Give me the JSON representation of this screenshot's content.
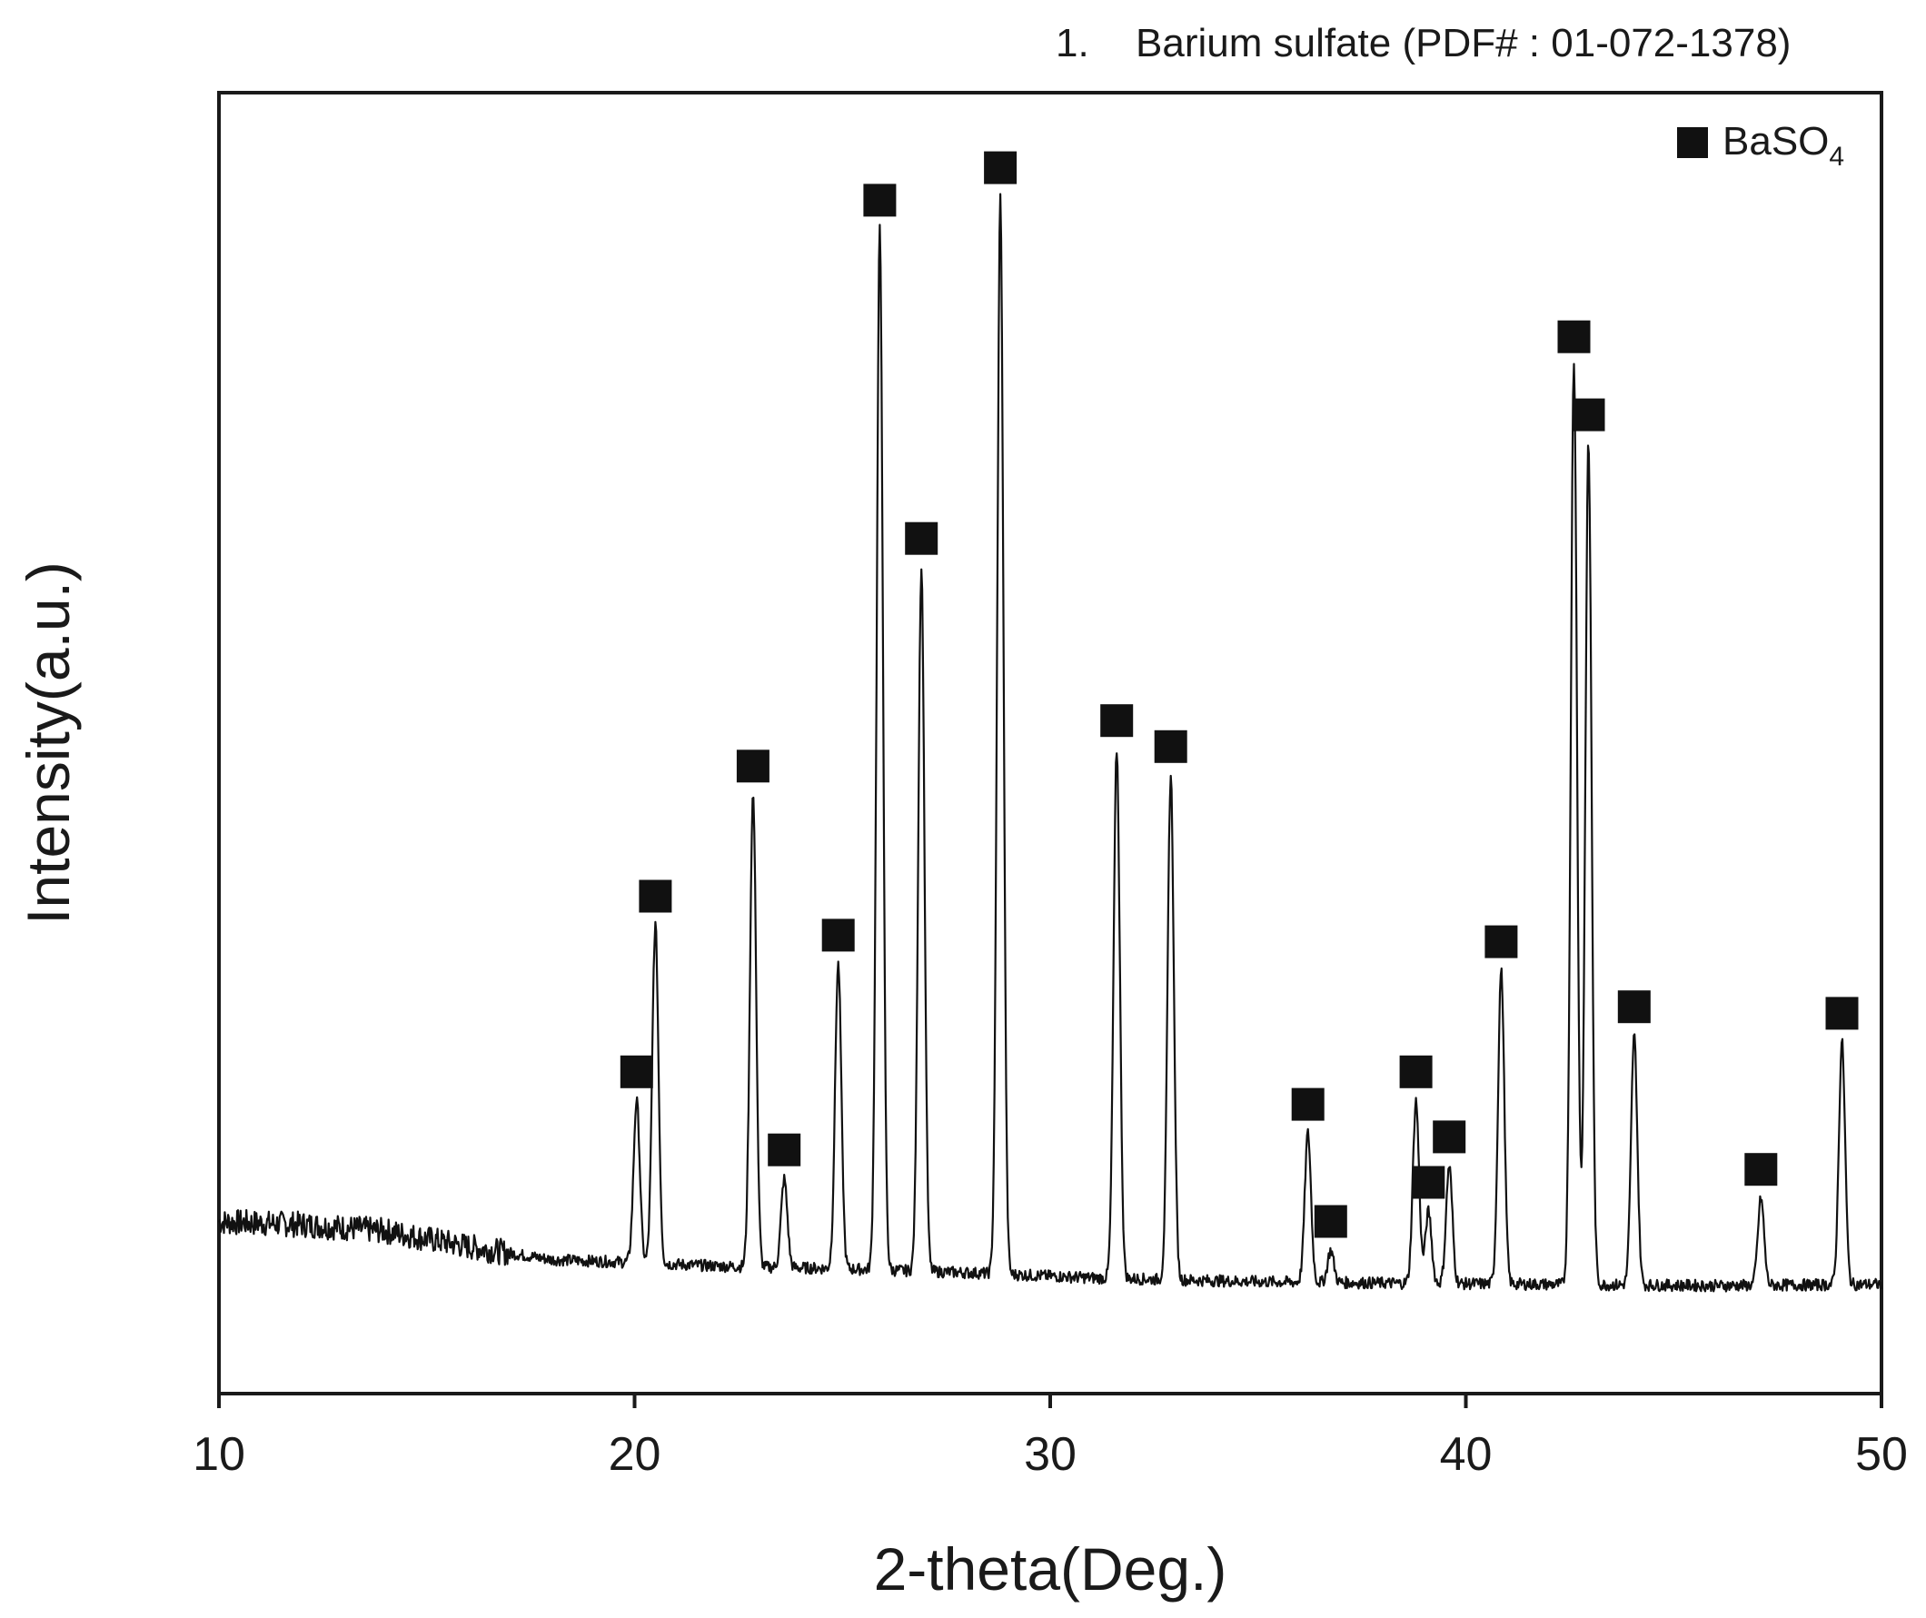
{
  "header": {
    "caption_number": "1.",
    "caption_text": "Barium sulfate (PDF# : 01-072-1378)"
  },
  "chart_data": {
    "type": "line",
    "title": "",
    "xlabel": "2-theta(Deg.)",
    "ylabel": "Intensity(a.u.)",
    "xlim": [
      10,
      50
    ],
    "ylim": [
      0,
      100
    ],
    "x_ticks": [
      10,
      20,
      30,
      40,
      50
    ],
    "y_ticks_shown": false,
    "grid": false,
    "legend": {
      "placement": "top-right",
      "entries": [
        {
          "marker": "square",
          "label_main": "BaSO",
          "label_sub": "4"
        }
      ]
    },
    "series": [
      {
        "color": "#111111",
        "baseline": [
          [
            10,
            13.2
          ],
          [
            12,
            13.0
          ],
          [
            14,
            12.5
          ],
          [
            16,
            11.3
          ],
          [
            18,
            10.3
          ],
          [
            19.8,
            10.1
          ],
          [
            22,
            9.8
          ],
          [
            25,
            9.6
          ],
          [
            28,
            9.3
          ],
          [
            31,
            8.9
          ],
          [
            35,
            8.6
          ],
          [
            38,
            8.5
          ],
          [
            42,
            8.4
          ],
          [
            46,
            8.3
          ],
          [
            50,
            8.4
          ]
        ],
        "peaks": [
          {
            "x": 20.05,
            "intensity": 22.5
          },
          {
            "x": 20.5,
            "intensity": 36.0
          },
          {
            "x": 22.85,
            "intensity": 46.0
          },
          {
            "x": 23.6,
            "intensity": 16.5
          },
          {
            "x": 24.9,
            "intensity": 33.0
          },
          {
            "x": 25.9,
            "intensity": 89.5
          },
          {
            "x": 26.9,
            "intensity": 63.5
          },
          {
            "x": 28.8,
            "intensity": 92.0
          },
          {
            "x": 31.6,
            "intensity": 49.5
          },
          {
            "x": 32.9,
            "intensity": 47.5
          },
          {
            "x": 36.2,
            "intensity": 20.0
          },
          {
            "x": 36.75,
            "intensity": 11.0
          },
          {
            "x": 38.8,
            "intensity": 22.5
          },
          {
            "x": 39.1,
            "intensity": 14.0
          },
          {
            "x": 39.6,
            "intensity": 17.5
          },
          {
            "x": 40.85,
            "intensity": 32.5
          },
          {
            "x": 42.6,
            "intensity": 79.0
          },
          {
            "x": 42.95,
            "intensity": 73.0
          },
          {
            "x": 44.05,
            "intensity": 27.5
          },
          {
            "x": 47.1,
            "intensity": 15.0
          },
          {
            "x": 49.05,
            "intensity": 27.0
          }
        ],
        "marked_peaks_x": [
          20.05,
          20.5,
          22.85,
          23.6,
          24.9,
          25.9,
          26.9,
          28.8,
          31.6,
          32.9,
          36.2,
          36.75,
          38.8,
          39.1,
          39.6,
          40.85,
          42.6,
          42.95,
          44.05,
          47.1,
          49.05
        ],
        "marker_name": "BaSO4"
      }
    ]
  }
}
